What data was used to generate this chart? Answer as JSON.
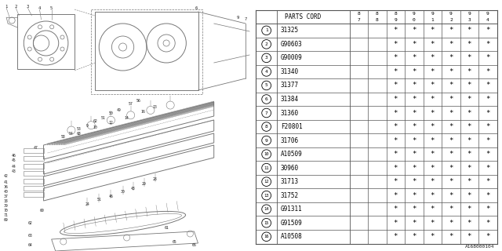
{
  "title": "A168000104",
  "bg_color": "#ffffff",
  "table_header": "PARTS CORD",
  "col_years": [
    "87",
    "88",
    "89",
    "90",
    "91",
    "92",
    "93",
    "94"
  ],
  "rows": [
    {
      "num": 1,
      "code": "31325"
    },
    {
      "num": 2,
      "code": "G90603"
    },
    {
      "num": 3,
      "code": "G90009"
    },
    {
      "num": 4,
      "code": "31340"
    },
    {
      "num": 5,
      "code": "31377"
    },
    {
      "num": 6,
      "code": "31384"
    },
    {
      "num": 7,
      "code": "31360"
    },
    {
      "num": 8,
      "code": "F20801"
    },
    {
      "num": 9,
      "code": "31706"
    },
    {
      "num": 10,
      "code": "A10509"
    },
    {
      "num": 11,
      "code": "30960"
    },
    {
      "num": 12,
      "code": "31713"
    },
    {
      "num": 13,
      "code": "31752"
    },
    {
      "num": 14,
      "code": "G91311"
    },
    {
      "num": 15,
      "code": "G91509"
    },
    {
      "num": 16,
      "code": "A10508"
    }
  ],
  "font_color": "#000000",
  "line_color": "#555555",
  "diagram_color": "#777777"
}
